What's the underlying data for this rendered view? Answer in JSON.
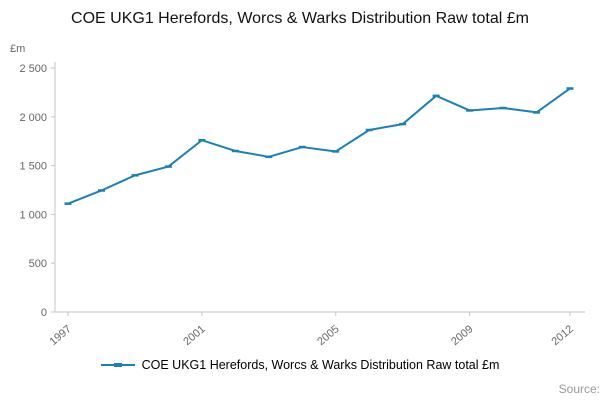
{
  "header": {
    "title": "COE UKG1 Herefords, Worcs & Warks Distribution Raw total £m"
  },
  "footer": {
    "source_label": "Source:"
  },
  "chart_data": {
    "type": "line",
    "title": "COE UKG1 Herefords, Worcs & Warks Distribution Raw total £m",
    "ylabel": "£m",
    "xlabel": "",
    "legend_label": "COE UKG1 Herefords, Worcs & Warks Distribution Raw total £m",
    "legend_position": "bottom",
    "grid": false,
    "line_color": "#1a80b5",
    "axis_color": "#c6c6c6",
    "tick_text_color": "#666666",
    "x": [
      1997,
      1998,
      1999,
      2000,
      2001,
      2002,
      2003,
      2004,
      2005,
      2006,
      2007,
      2008,
      2009,
      2010,
      2011,
      2012
    ],
    "values": [
      1110,
      1245,
      1400,
      1490,
      1760,
      1650,
      1590,
      1690,
      1645,
      1865,
      1925,
      2215,
      2065,
      2090,
      2045,
      2290
    ],
    "ylim": [
      0,
      2500
    ],
    "yticks": [
      0,
      500,
      1000,
      1500,
      2000,
      2500
    ],
    "ytick_labels": [
      "0",
      "500",
      "1 000",
      "1 500",
      "2 000",
      "2 500"
    ],
    "xtick_years": [
      1997,
      2001,
      2005,
      2009,
      2012
    ],
    "xtick_labels": [
      "1997",
      "2001",
      "2005",
      "2009",
      "2012"
    ]
  }
}
